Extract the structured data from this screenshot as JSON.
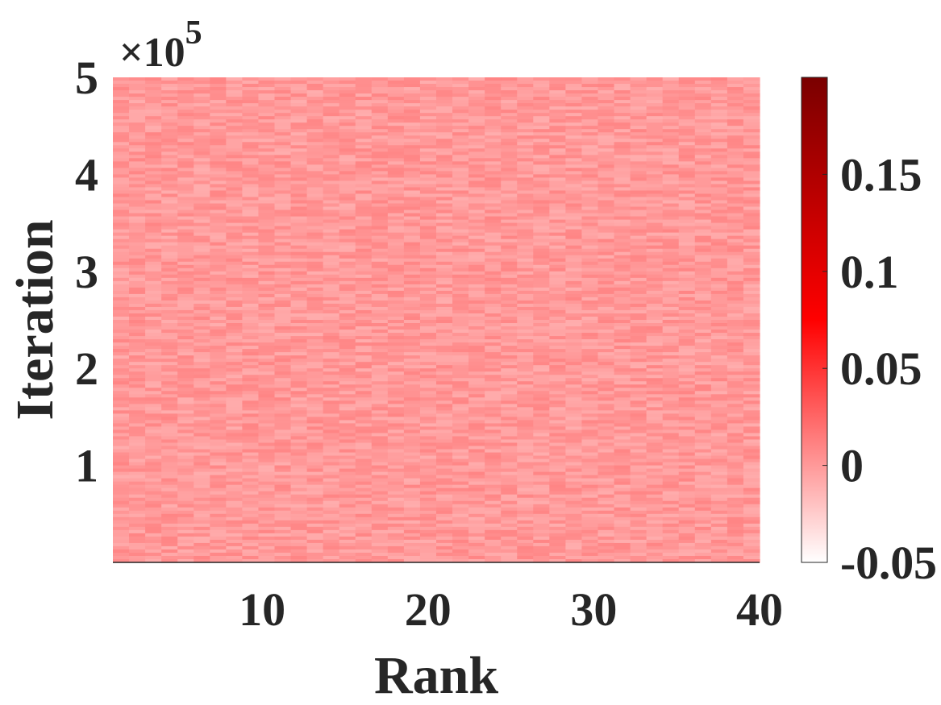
{
  "chart_data": {
    "type": "heatmap",
    "title": "",
    "xlabel": "Rank",
    "ylabel": "Iteration",
    "xlim": [
      1,
      40
    ],
    "ylim": [
      0,
      500000
    ],
    "x_ticks": [
      10,
      20,
      30,
      40
    ],
    "x_tick_labels": [
      "10",
      "20",
      "30",
      "40"
    ],
    "y_ticks": [
      100000,
      200000,
      300000,
      400000,
      500000
    ],
    "y_tick_labels": [
      "1",
      "2",
      "3",
      "4",
      "5"
    ],
    "y_exponent_label": "×10",
    "y_exponent_power": "5",
    "colorbar": {
      "range": [
        -0.05,
        0.2
      ],
      "ticks": [
        -0.05,
        0,
        0.05,
        0.1,
        0.15
      ],
      "tick_labels": [
        "-0.05",
        "0",
        "0.05",
        "0.1",
        "0.15"
      ],
      "colors": [
        "#ffffff",
        "#ff0000",
        "#7a0000"
      ]
    },
    "value_typical": 0.0,
    "value_spread": 0.01,
    "grid": false
  }
}
